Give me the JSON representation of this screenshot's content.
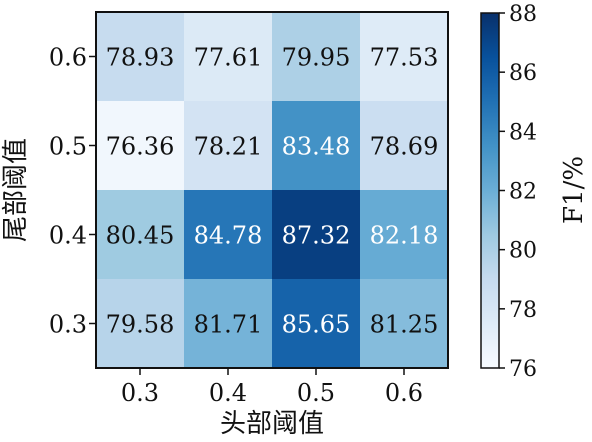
{
  "chart_data": {
    "type": "heatmap",
    "xlabel": "头部阈值",
    "ylabel": "尾部阈值",
    "x_categories": [
      "0.3",
      "0.4",
      "0.5",
      "0.6"
    ],
    "y_categories": [
      "0.6",
      "0.5",
      "0.4",
      "0.3"
    ],
    "values": [
      [
        78.93,
        77.61,
        79.95,
        77.53
      ],
      [
        76.36,
        78.21,
        83.48,
        78.69
      ],
      [
        80.45,
        84.78,
        87.32,
        82.18
      ],
      [
        79.58,
        81.71,
        85.65,
        81.25
      ]
    ],
    "value_labels": [
      [
        "78.93",
        "77.61",
        "79.95",
        "77.53"
      ],
      [
        "76.36",
        "78.21",
        "83.48",
        "78.69"
      ],
      [
        "80.45",
        "84.78",
        "87.32",
        "82.18"
      ],
      [
        "79.58",
        "81.71",
        "85.65",
        "81.25"
      ]
    ],
    "colorbar": {
      "label": "F1/%",
      "range": [
        76,
        88
      ],
      "ticks": [
        76,
        78,
        80,
        82,
        84,
        86,
        88
      ],
      "tick_labels": [
        "76",
        "78",
        "80",
        "82",
        "84",
        "86",
        "88"
      ],
      "colormap": "Blues"
    },
    "grid": false,
    "legend": "colorbar-right"
  }
}
